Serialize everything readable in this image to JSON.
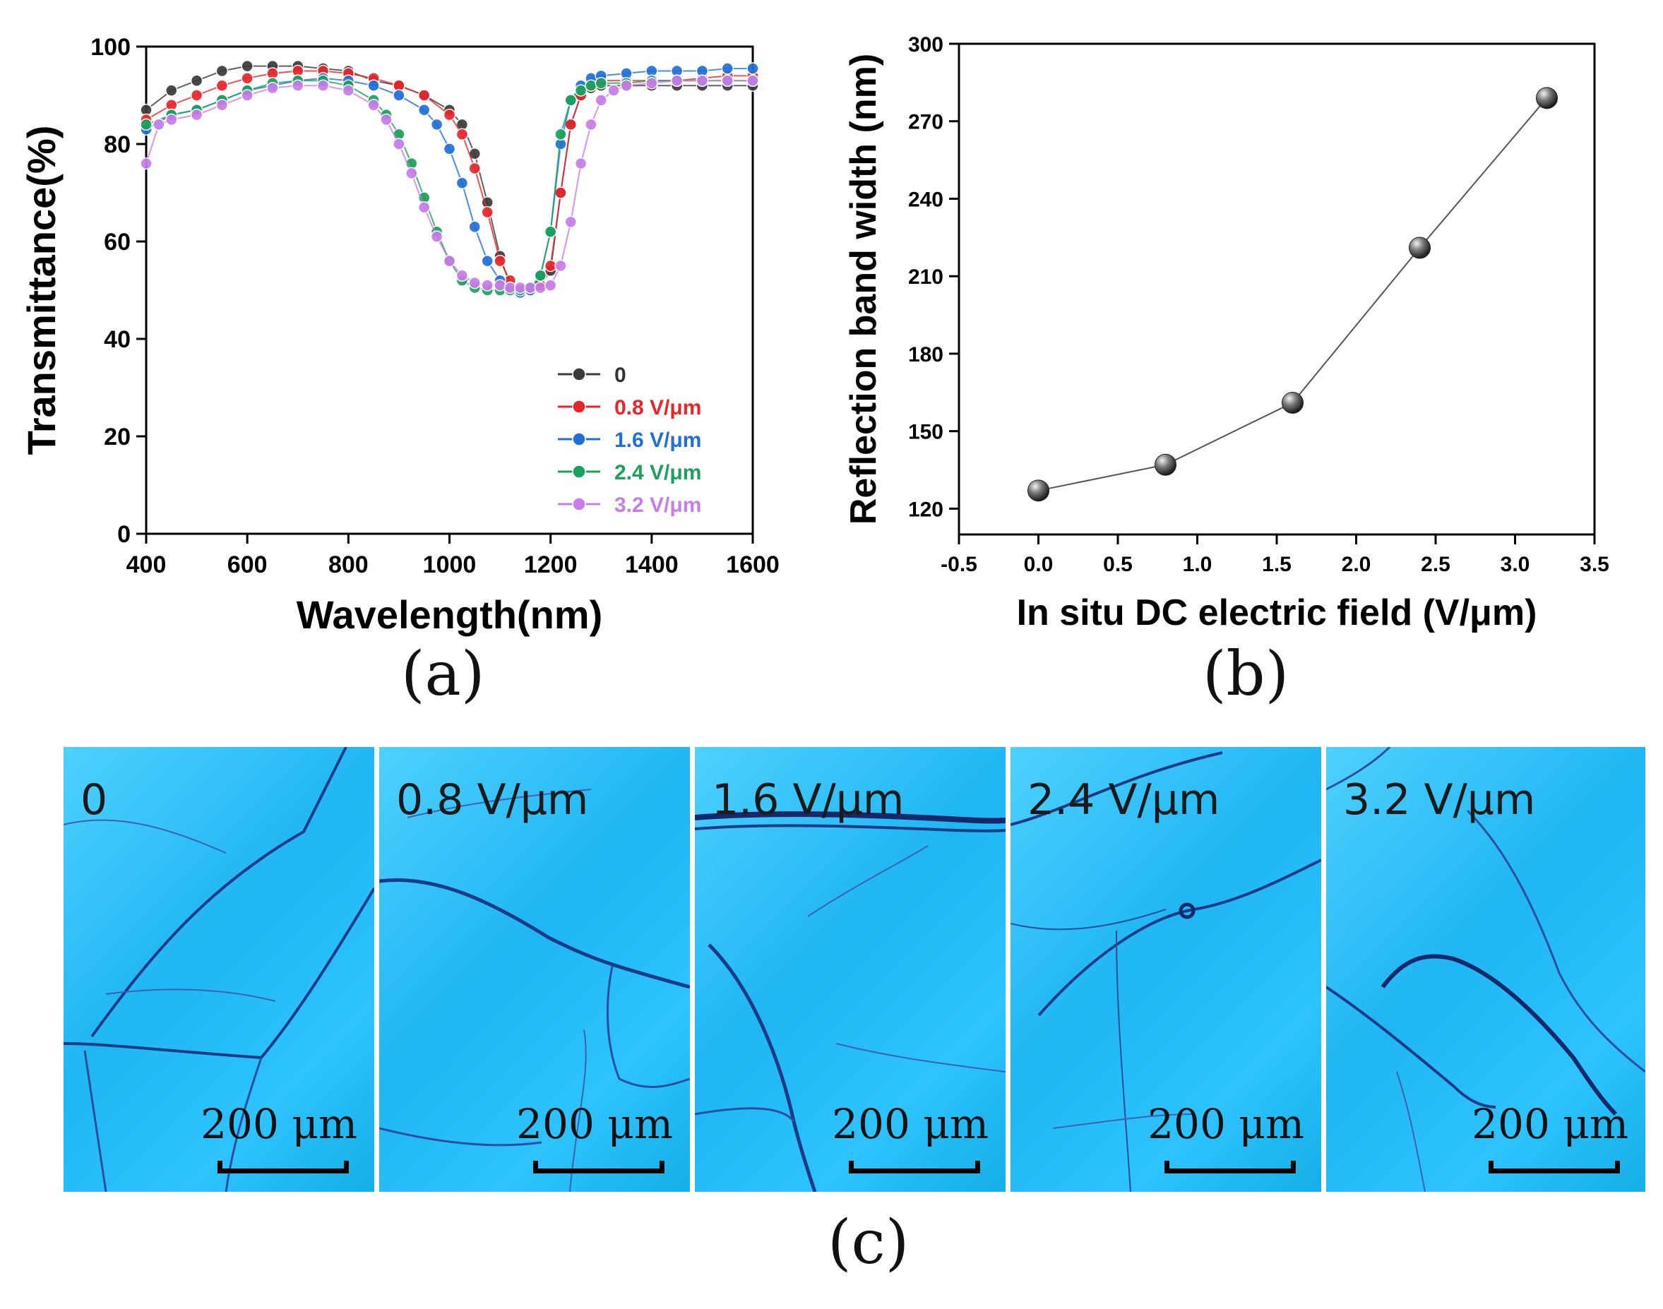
{
  "chart_data": [
    {
      "id": "a",
      "type": "scatter",
      "xlabel": "Wavelength(nm)",
      "ylabel": "Transmittance(%)",
      "xlim": [
        400,
        1600
      ],
      "ylim": [
        0,
        100
      ],
      "xticks": [
        "400",
        "600",
        "800",
        "1000",
        "1200",
        "1400",
        "1600"
      ],
      "yticks": [
        "0",
        "20",
        "40",
        "60",
        "80",
        "100"
      ],
      "legend_position": "bottom-right",
      "series": [
        {
          "name": "0",
          "color": "#3a3a3a",
          "x": [
            400,
            450,
            500,
            550,
            600,
            650,
            700,
            750,
            800,
            850,
            900,
            950,
            1000,
            1025,
            1050,
            1075,
            1100,
            1120,
            1140,
            1160,
            1180,
            1200,
            1220,
            1240,
            1260,
            1280,
            1300,
            1350,
            1400,
            1450,
            1500,
            1550,
            1600
          ],
          "y": [
            87,
            91,
            93,
            95,
            96,
            96,
            96,
            95.5,
            95,
            93,
            92,
            90,
            87,
            84,
            78,
            68,
            57,
            51,
            50,
            50,
            51,
            54,
            70,
            84,
            90,
            91.5,
            92,
            92,
            92,
            92,
            92,
            92,
            92
          ]
        },
        {
          "name": "0.8 V/μm",
          "color": "#e8262a",
          "x": [
            400,
            450,
            500,
            550,
            600,
            650,
            700,
            750,
            800,
            850,
            900,
            950,
            1000,
            1025,
            1050,
            1075,
            1100,
            1120,
            1140,
            1160,
            1180,
            1200,
            1220,
            1240,
            1260,
            1280,
            1300,
            1350,
            1400,
            1450,
            1500,
            1550,
            1600
          ],
          "y": [
            85,
            88,
            90,
            92,
            93.5,
            94.5,
            95,
            95,
            94.5,
            93.5,
            92,
            90,
            86,
            82,
            75,
            66,
            56,
            52,
            50,
            50,
            51,
            55,
            70,
            84,
            90,
            92,
            93,
            93,
            93,
            93,
            93.5,
            94,
            94
          ]
        },
        {
          "name": "1.6 V/μm",
          "color": "#1f6fd8",
          "x": [
            400,
            450,
            500,
            550,
            600,
            650,
            700,
            750,
            800,
            850,
            900,
            950,
            975,
            1000,
            1025,
            1050,
            1075,
            1100,
            1120,
            1140,
            1160,
            1180,
            1200,
            1220,
            1240,
            1260,
            1280,
            1300,
            1350,
            1400,
            1450,
            1500,
            1550,
            1600
          ],
          "y": [
            83,
            86,
            87,
            89,
            91,
            92,
            93,
            93.5,
            93,
            92,
            90,
            87,
            84,
            79,
            72,
            63,
            56,
            52,
            50.5,
            49.5,
            50,
            53,
            62,
            80,
            89,
            92,
            93.5,
            94,
            94.5,
            95,
            95,
            95,
            95.5,
            95.5
          ]
        },
        {
          "name": "2.4 V/μm",
          "color": "#1aa15a",
          "x": [
            400,
            450,
            500,
            550,
            600,
            650,
            700,
            750,
            800,
            850,
            875,
            900,
            925,
            950,
            975,
            1000,
            1025,
            1050,
            1075,
            1100,
            1120,
            1140,
            1160,
            1180,
            1200,
            1220,
            1240,
            1260,
            1280,
            1300,
            1350,
            1400,
            1450,
            1500,
            1550,
            1600
          ],
          "y": [
            84,
            86,
            87,
            89,
            91,
            92.5,
            93,
            93,
            92,
            89,
            86,
            82,
            76,
            69,
            62,
            56,
            52,
            50.5,
            50,
            50,
            50,
            50,
            50.5,
            53,
            62,
            82,
            89,
            91,
            92,
            92.5,
            92.5,
            93,
            93,
            93,
            93,
            93
          ]
        },
        {
          "name": "3.2 V/μm",
          "color": "#c77ce8",
          "x": [
            400,
            425,
            450,
            500,
            550,
            600,
            650,
            700,
            750,
            800,
            850,
            875,
            900,
            925,
            950,
            975,
            1000,
            1025,
            1050,
            1075,
            1100,
            1120,
            1140,
            1160,
            1180,
            1200,
            1220,
            1240,
            1260,
            1280,
            1300,
            1325,
            1350,
            1400,
            1450,
            1500,
            1550,
            1600
          ],
          "y": [
            76,
            84,
            85,
            86,
            88,
            90,
            91.5,
            92,
            92,
            91,
            88,
            85,
            80,
            74,
            67,
            61,
            56,
            53,
            51.5,
            51,
            51,
            50.5,
            50.5,
            50.5,
            50.5,
            51,
            55,
            64,
            76,
            84,
            89,
            91,
            92,
            92.5,
            93,
            93,
            93,
            93
          ]
        }
      ]
    },
    {
      "id": "b",
      "type": "line",
      "xlabel": "In situ DC electric field (V/μm)",
      "ylabel": "Reflection band width (nm)",
      "xlim": [
        -0.5,
        3.5
      ],
      "ylim": [
        110,
        300
      ],
      "xticks": [
        "-0.5",
        "0.0",
        "0.5",
        "1.0",
        "1.5",
        "2.0",
        "2.5",
        "3.0",
        "3.5"
      ],
      "yticks": [
        "120",
        "150",
        "180",
        "210",
        "240",
        "270",
        "300"
      ],
      "series": [
        {
          "name": "bandwidth",
          "color": "#555555",
          "x": [
            0.0,
            0.8,
            1.6,
            2.4,
            3.2
          ],
          "y": [
            127,
            137,
            161,
            221,
            279
          ]
        }
      ]
    }
  ],
  "panel_labels": {
    "a": "(a)",
    "b": "(b)",
    "c": "(c)"
  },
  "micrographs": [
    {
      "label": "0",
      "scale": "200 μm"
    },
    {
      "label": "0.8 V/μm",
      "scale": "200 μm"
    },
    {
      "label": "1.6 V/μm",
      "scale": "200 μm"
    },
    {
      "label": "2.4 V/μm",
      "scale": "200 μm"
    },
    {
      "label": "3.2 V/μm",
      "scale": "200 μm"
    }
  ]
}
